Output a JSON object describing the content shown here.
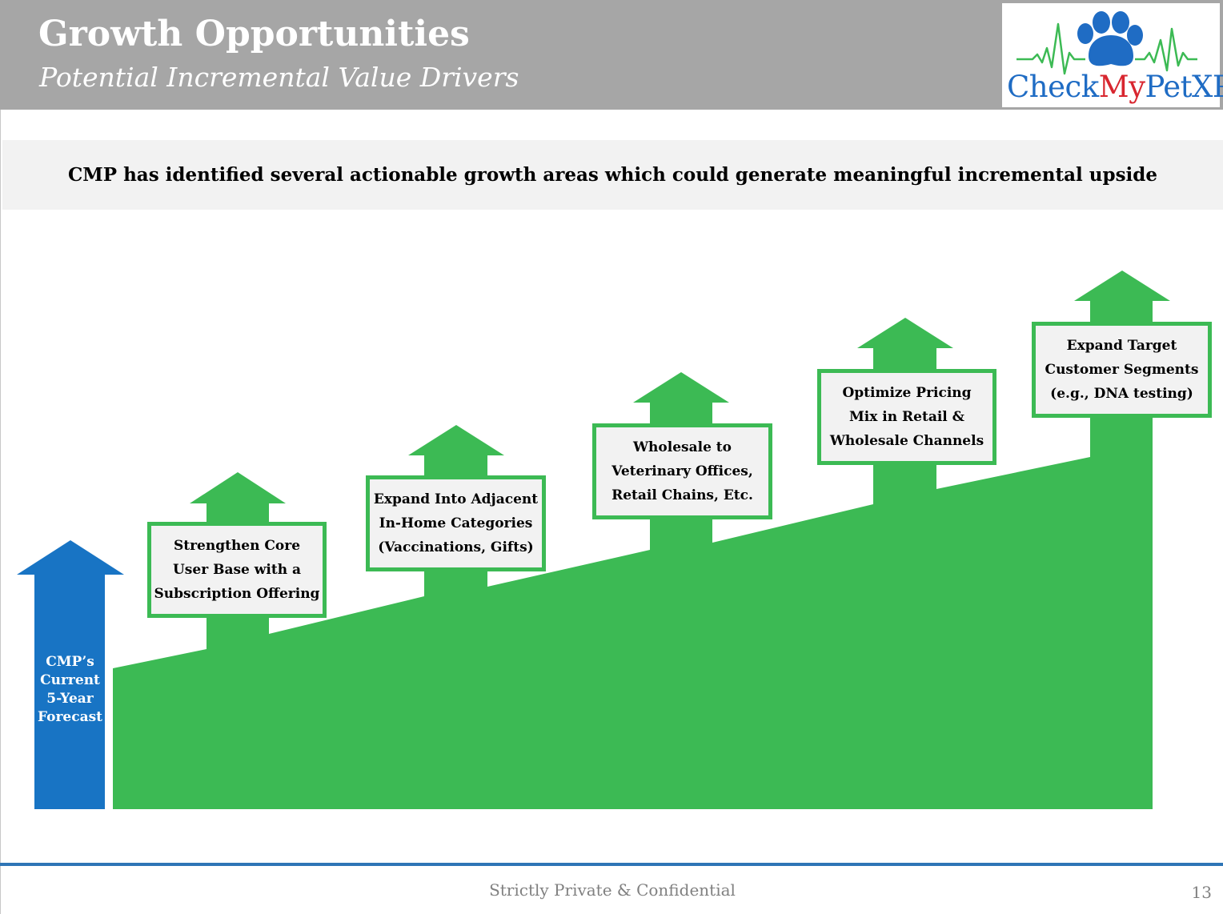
{
  "header": {
    "title": "Growth Opportunities",
    "subtitle": "Potential Incremental Value Drivers"
  },
  "logo": {
    "text_part1": "Check",
    "text_part2": "My",
    "text_part3": "PetXP",
    "icon": "paw-heartbeat-icon"
  },
  "banner": {
    "text": "CMP has identified several actionable growth areas which could generate meaningful incremental upside"
  },
  "diagram": {
    "base_label": "CMP’s\nCurrent\n5-Year\nForecast",
    "drivers": [
      {
        "label": "Strengthen Core\nUser Base with a\nSubscription Offering"
      },
      {
        "label": "Expand Into Adjacent\nIn-Home Categories\n(Vaccinations, Gifts)"
      },
      {
        "label": "Wholesale to\nVeterinary Offices,\nRetail Chains, Etc."
      },
      {
        "label": "Optimize Pricing\nMix in Retail &\nWholesale Channels"
      },
      {
        "label": "Expand Target\nCustomer Segments\n(e.g., DNA testing)"
      }
    ]
  },
  "footer": {
    "confidential": "Strictly Private & Confidential",
    "page_number": "13"
  },
  "colors": {
    "header_bg": "#a6a6a6",
    "green": "#3cba54",
    "blue": "#1874c4",
    "box_fill": "#f2f2f2",
    "logo_blue": "#1f6cc4",
    "logo_red": "#d8262f",
    "footer_line": "#2e75b6"
  }
}
